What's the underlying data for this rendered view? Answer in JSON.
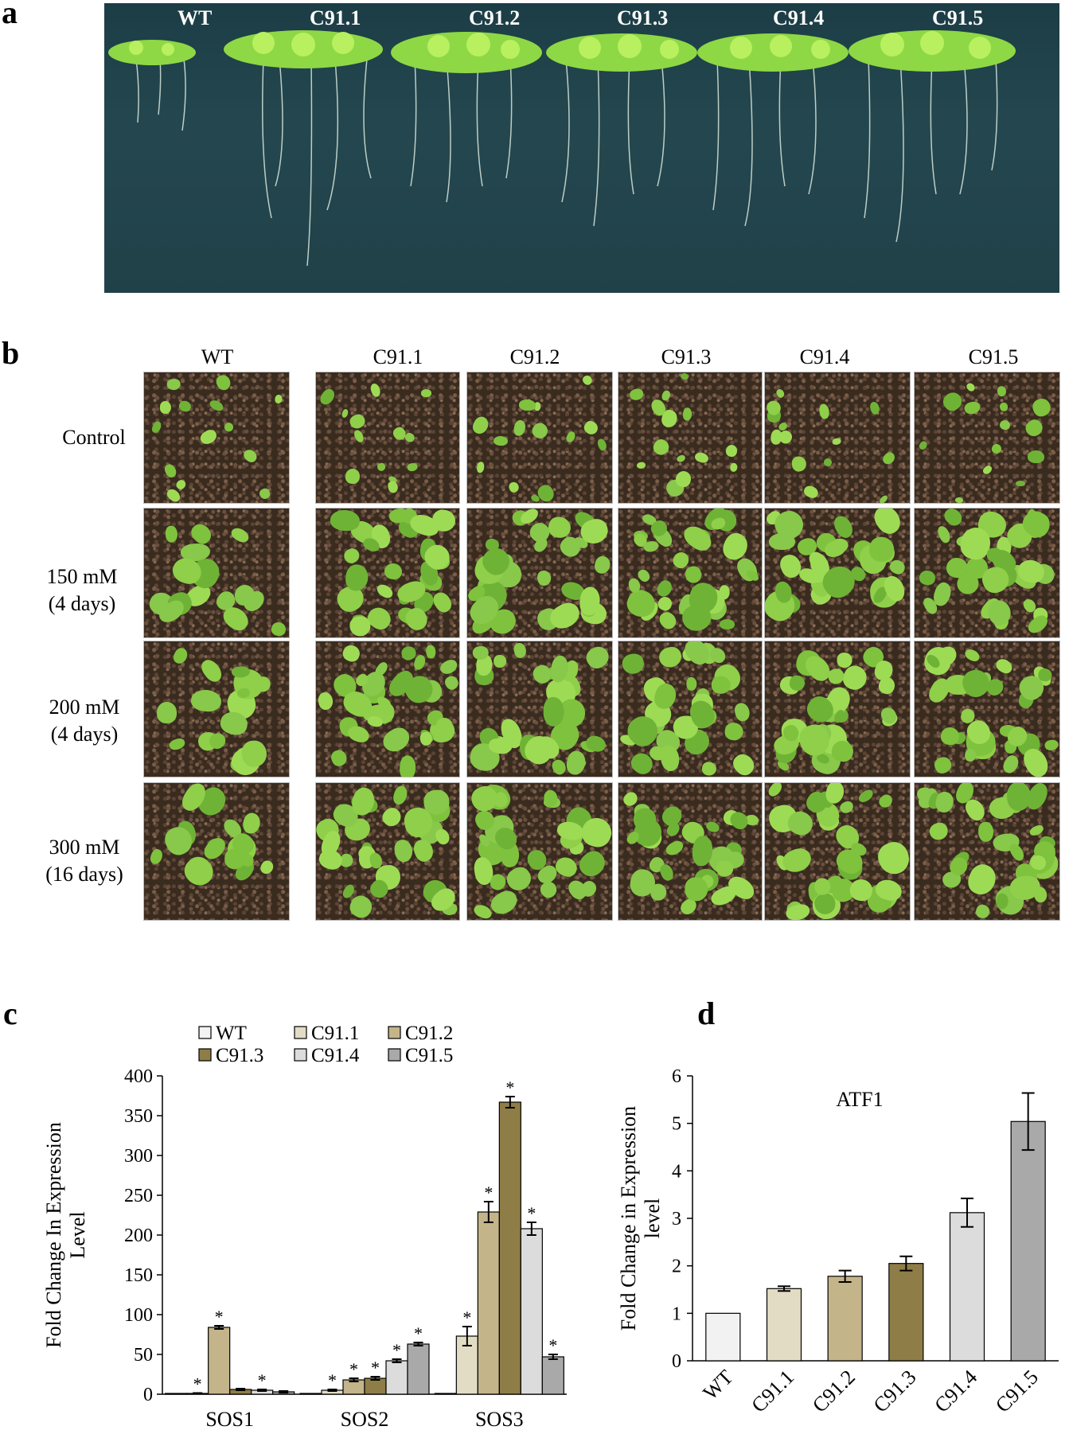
{
  "panels": {
    "a": {
      "letter": "a",
      "labels": [
        "WT",
        "C91.1",
        "C91.2",
        "C91.3",
        "C91.4",
        "C91.5"
      ]
    },
    "b": {
      "letter": "b",
      "columns": [
        "WT",
        "C91.1",
        "C91.2",
        "C91.3",
        "C91.4",
        "C91.5"
      ],
      "rows": [
        {
          "line1": "Control",
          "line2": ""
        },
        {
          "line1": "150 mM",
          "line2": "(4 days)"
        },
        {
          "line1": "200 mM",
          "line2": "(4 days)"
        },
        {
          "line1": "300 mM",
          "line2": "(16 days)"
        }
      ]
    },
    "c": {
      "letter": "c"
    },
    "d": {
      "letter": "d"
    }
  },
  "colors": {
    "WT": "#f2f2f2",
    "C91.1": "#e3dcc4",
    "C91.2": "#c4b48a",
    "C91.3": "#8f7d48",
    "C91.4": "#dcdcdc",
    "C91.5": "#a9a9a9",
    "seedling": "#8ed845",
    "soil": "#3a2b1f",
    "plate": "#22454d"
  },
  "chart_data": [
    {
      "type": "bar",
      "panel": "c",
      "title": "",
      "xlabel": "",
      "ylabel": "Fold Change In Expression Level",
      "ylim": [
        0,
        400
      ],
      "yticks": [
        0,
        50,
        100,
        150,
        200,
        250,
        300,
        350,
        400
      ],
      "categories": [
        "SOS1",
        "SOS2",
        "SOS3"
      ],
      "legend": {
        "placement": "top",
        "items": [
          "WT",
          "C91.1",
          "C91.2",
          "C91.3",
          "C91.4",
          "C91.5"
        ]
      },
      "series": [
        {
          "name": "WT",
          "values": [
            1,
            1,
            1
          ],
          "errors": [
            0,
            0,
            0
          ],
          "sig": [
            false,
            false,
            false
          ]
        },
        {
          "name": "C91.1",
          "values": [
            1,
            5,
            73
          ],
          "errors": [
            0.5,
            1,
            12
          ],
          "sig": [
            true,
            true,
            true
          ]
        },
        {
          "name": "C91.2",
          "values": [
            84,
            18,
            229
          ],
          "errors": [
            2,
            2,
            13
          ],
          "sig": [
            true,
            true,
            true
          ]
        },
        {
          "name": "C91.3",
          "values": [
            6,
            20,
            367
          ],
          "errors": [
            1,
            2,
            7
          ],
          "sig": [
            false,
            true,
            true
          ]
        },
        {
          "name": "C91.4",
          "values": [
            5,
            42,
            208
          ],
          "errors": [
            1,
            2,
            8
          ],
          "sig": [
            true,
            true,
            true
          ]
        },
        {
          "name": "C91.5",
          "values": [
            3,
            63,
            47
          ],
          "errors": [
            1,
            2,
            3
          ],
          "sig": [
            false,
            true,
            true
          ]
        }
      ],
      "sig_symbol": "*"
    },
    {
      "type": "bar",
      "panel": "d",
      "title": "ATF1",
      "xlabel": "",
      "ylabel": "Fold Change in Expression level",
      "ylim": [
        0,
        6
      ],
      "yticks": [
        0,
        1,
        2,
        3,
        4,
        5,
        6
      ],
      "categories": [
        "WT",
        "C91.1",
        "C91.2",
        "C91.3",
        "C91.4",
        "C91.5"
      ],
      "values": [
        1.0,
        1.52,
        1.78,
        2.05,
        3.12,
        5.04
      ],
      "errors": [
        0,
        0.05,
        0.12,
        0.15,
        0.3,
        0.6
      ]
    }
  ]
}
